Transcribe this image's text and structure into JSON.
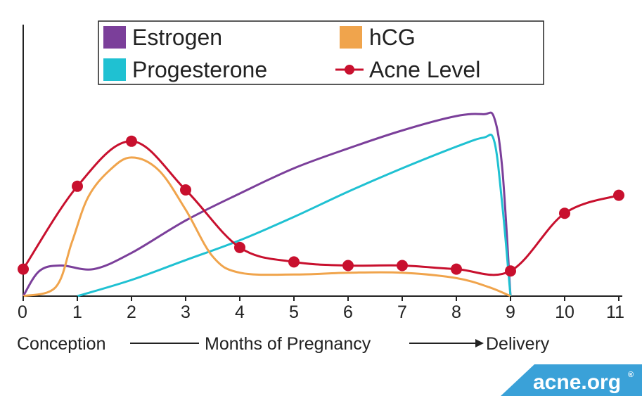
{
  "chart_data": {
    "type": "line",
    "x_ticks": [
      "0",
      "1",
      "2",
      "3",
      "4",
      "5",
      "6",
      "7",
      "8",
      "9",
      "10",
      "11"
    ],
    "xlim": [
      0,
      11
    ],
    "series": [
      {
        "name": "Estrogen",
        "color": "#7b3f9a",
        "points": [
          [
            0,
            0
          ],
          [
            0.3,
            0.14
          ],
          [
            0.7,
            0.17
          ],
          [
            1.3,
            0.15
          ],
          [
            2,
            0.24
          ],
          [
            3,
            0.42
          ],
          [
            4,
            0.57
          ],
          [
            5,
            0.71
          ],
          [
            6,
            0.82
          ],
          [
            7,
            0.92
          ],
          [
            8,
            1.0
          ],
          [
            8.5,
            1.01
          ],
          [
            8.7,
            0.99
          ],
          [
            8.85,
            0.7
          ],
          [
            9,
            0
          ]
        ]
      },
      {
        "name": "Progesterone",
        "color": "#1fc1d2",
        "points": [
          [
            1,
            0
          ],
          [
            2,
            0.09
          ],
          [
            3,
            0.2
          ],
          [
            4,
            0.31
          ],
          [
            5,
            0.44
          ],
          [
            6,
            0.58
          ],
          [
            7,
            0.71
          ],
          [
            8,
            0.83
          ],
          [
            8.5,
            0.88
          ],
          [
            8.7,
            0.86
          ],
          [
            8.85,
            0.5
          ],
          [
            9,
            0
          ]
        ]
      },
      {
        "name": "hCG",
        "color": "#f0a44c",
        "points": [
          [
            0,
            0
          ],
          [
            0.6,
            0.05
          ],
          [
            0.9,
            0.3
          ],
          [
            1.2,
            0.55
          ],
          [
            1.6,
            0.7
          ],
          [
            2,
            0.77
          ],
          [
            2.5,
            0.7
          ],
          [
            3,
            0.48
          ],
          [
            3.5,
            0.22
          ],
          [
            4,
            0.13
          ],
          [
            5,
            0.12
          ],
          [
            6,
            0.13
          ],
          [
            7,
            0.13
          ],
          [
            8,
            0.1
          ],
          [
            8.6,
            0.05
          ],
          [
            9,
            0
          ]
        ]
      },
      {
        "name": "Acne Level",
        "color": "#c8102e",
        "points": [
          [
            0,
            0.15
          ],
          [
            1,
            0.61
          ],
          [
            2,
            0.86
          ],
          [
            3,
            0.59
          ],
          [
            4,
            0.27
          ],
          [
            5,
            0.19
          ],
          [
            6,
            0.17
          ],
          [
            7,
            0.17
          ],
          [
            8,
            0.15
          ],
          [
            9,
            0.14
          ],
          [
            10,
            0.46
          ],
          [
            11,
            0.56
          ]
        ],
        "markers": true
      }
    ],
    "legend": [
      {
        "label": "Estrogen",
        "color": "#7b3f9a",
        "kind": "swatch"
      },
      {
        "label": "hCG",
        "color": "#f0a44c",
        "kind": "swatch"
      },
      {
        "label": "Progesterone",
        "color": "#1fc1d2",
        "kind": "swatch"
      },
      {
        "label": "Acne Level",
        "color": "#c8102e",
        "kind": "line-marker"
      }
    ],
    "legend_position": "top-center",
    "axis_annotations": {
      "start": "Conception",
      "middle": "Months of Pregnancy",
      "end": "Delivery"
    },
    "grid": false
  },
  "brand": {
    "text": "acne.org",
    "mark": "®",
    "bg_color": "#3aa1d8"
  }
}
